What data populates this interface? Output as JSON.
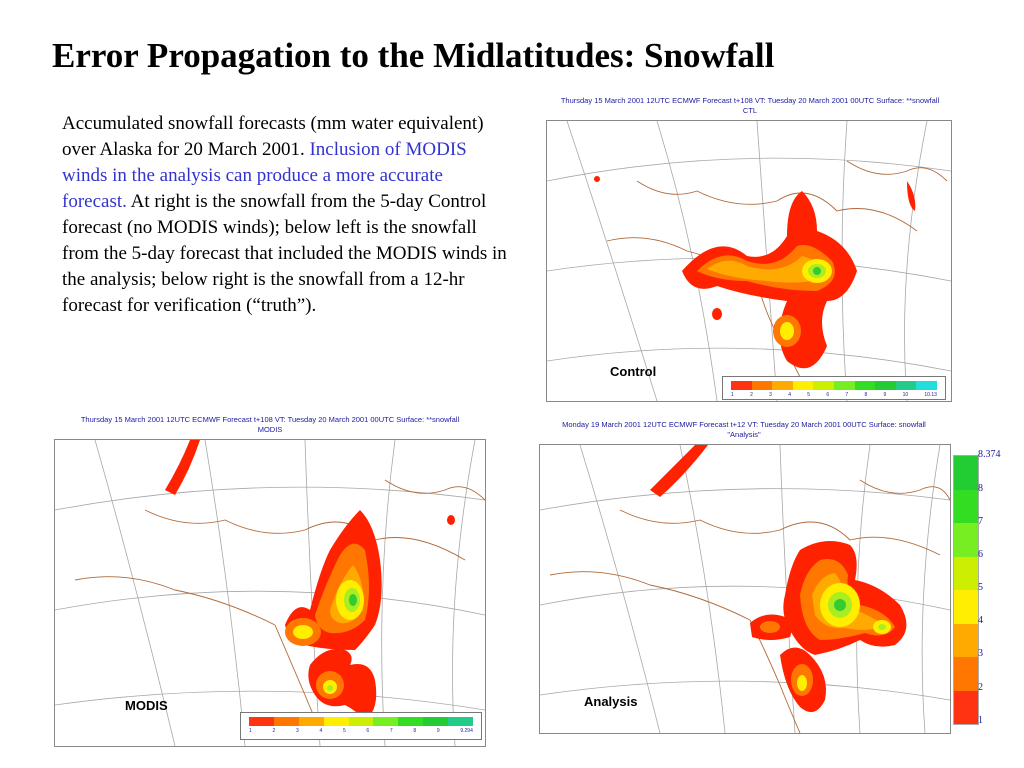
{
  "title": "Error Propagation to the Midlatitudes: Snowfall",
  "description": {
    "part1": "Accumulated snowfall forecasts (mm water equivalent) over Alaska for 20 March 2001.",
    "highlight": "Inclusion of MODIS winds in the analysis can produce a more accurate forecast.",
    "part2": "At right is the snowfall from the 5-day Control forecast (no MODIS winds); below left is the snowfall from the 5-day forecast that included the MODIS winds in the analysis; below right is the snowfall from a 12-hr forecast for verification (“truth”)."
  },
  "panels": {
    "control": {
      "header1": "Thursday 15 March 2001 12UTC ECMWF  Forecast t+108 VT: Tuesday 20 March 2001 00UTC Surface: **snowfall",
      "header2": "CTL",
      "label": "Control",
      "ticks": [
        "1",
        "2",
        "3",
        "4",
        "5",
        "6",
        "7",
        "8",
        "9",
        "10",
        "10.13"
      ]
    },
    "modis": {
      "header1": "Thursday 15 March 2001 12UTC ECMWF  Forecast t+108 VT: Tuesday 20 March 2001 00UTC Surface: **snowfall",
      "header2": "MODIS",
      "label": "MODIS",
      "ticks": [
        "1",
        "2",
        "3",
        "4",
        "5",
        "6",
        "7",
        "8",
        "9",
        "9.294"
      ]
    },
    "analysis": {
      "header1": "Monday 19 March 2001 12UTC ECMWF  Forecast t+12 VT: Tuesday 20 March 2001 00UTC Surface: snowfall",
      "header2": "\"Analysis\"",
      "label": "Analysis"
    }
  },
  "legend": {
    "ticks": [
      "8.374",
      "8",
      "7",
      "6",
      "5",
      "4",
      "3",
      "2",
      "1"
    ],
    "colors": [
      "#22cc33",
      "#33dd22",
      "#77ee22",
      "#ccee00",
      "#ffee00",
      "#ffaa00",
      "#ff7700",
      "#ff3311"
    ]
  },
  "colors": {
    "snow_outer": "#ff2200",
    "snow_2": "#ff6600",
    "snow_3": "#ffaa00",
    "snow_4": "#ffee00",
    "snow_5": "#aaee22",
    "snow_6": "#33cc33",
    "coastline": "#b06a3a",
    "gridline": "#999999",
    "highlight_text": "#3333cc"
  }
}
